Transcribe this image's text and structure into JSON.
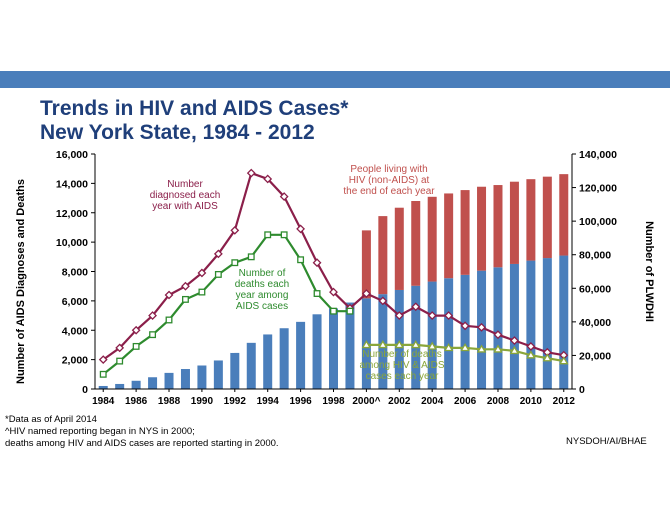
{
  "title_line1": "Trends in HIV and AIDS Cases*",
  "title_line2": "New York State, 1984 - 2012",
  "notes": [
    "*Data as of April 2014",
    "^HIV named reporting began in NYS in 2000;",
    " deaths among HIV and AIDS cases are reported starting in 2000."
  ],
  "source": "NYSDOH/AI/BHAE",
  "colors": {
    "band": "#4a7ebb",
    "title": "#1f3f7a",
    "aids_bar": "#4a7ebb",
    "hiv_bar": "#c0504d",
    "diagnosed_line": "#8b1f4a",
    "aids_deaths_line": "#2e8b2e",
    "all_deaths_line": "#8aa63a"
  },
  "chart_data": {
    "type": "bar",
    "x": [
      1984,
      1985,
      1986,
      1987,
      1988,
      1989,
      1990,
      1991,
      1992,
      1993,
      1994,
      1995,
      1996,
      1997,
      1998,
      1999,
      2000,
      2001,
      2002,
      2003,
      2004,
      2005,
      2006,
      2007,
      2008,
      2009,
      2010,
      2011,
      2012
    ],
    "x_tick_labels": [
      "1984",
      "1986",
      "1988",
      "1990",
      "1992",
      "1994",
      "1996",
      "1998",
      "2000^",
      "2002",
      "2004",
      "2006",
      "2008",
      "2010",
      "2012"
    ],
    "ylabel_left": "Number of AIDS Diagnoses and Deaths",
    "ylim_left": [
      0,
      16000
    ],
    "yticks_left": [
      "0",
      "2,000",
      "4,000",
      "6,000",
      "8,000",
      "10,000",
      "12,000",
      "14,000",
      "16,000"
    ],
    "ylabel_right": "Number of PLWDHI",
    "ylim_right": [
      0,
      140000
    ],
    "yticks_right": [
      "0",
      "20,000",
      "40,000",
      "60,000",
      "80,000",
      "100,000",
      "120,000",
      "140,000"
    ],
    "grid": false,
    "series": [
      {
        "axis": "right",
        "kind": "bar",
        "values": [
          1800,
          3000,
          4900,
          7000,
          9600,
          11900,
          14000,
          17000,
          21500,
          27500,
          32500,
          36200,
          40000,
          44500,
          48000,
          51500,
          54000,
          56500,
          59000,
          61500,
          64000,
          66000,
          68000,
          70500,
          72500,
          74500,
          76500,
          78000,
          79500
        ]
      },
      {
        "axis": "right",
        "kind": "stacked-bar",
        "values": [
          null,
          null,
          null,
          null,
          null,
          null,
          null,
          null,
          null,
          null,
          null,
          null,
          null,
          null,
          null,
          null,
          40500,
          46500,
          49000,
          50500,
          50500,
          50500,
          50500,
          50000,
          49000,
          49000,
          48500,
          48500,
          48500
        ]
      },
      {
        "axis": "left",
        "kind": "line",
        "marker": "diamond",
        "values": [
          2000,
          2800,
          4000,
          5000,
          6400,
          7000,
          7900,
          9200,
          10800,
          14700,
          14300,
          13100,
          10900,
          8600,
          6600,
          5500,
          6500,
          6000,
          5000,
          5600,
          5000,
          5000,
          4300,
          4200,
          3700,
          3300,
          2900,
          2500,
          2300
        ]
      },
      {
        "axis": "left",
        "kind": "line",
        "marker": "square",
        "values": [
          1000,
          1900,
          2900,
          3700,
          4700,
          6100,
          6600,
          7800,
          8600,
          9000,
          10500,
          10500,
          8800,
          6500,
          5300,
          5300,
          null,
          null,
          null,
          null,
          null,
          null,
          null,
          null,
          null,
          null,
          null,
          null,
          null
        ]
      },
      {
        "axis": "left",
        "kind": "line",
        "marker": "triangle",
        "values": [
          null,
          null,
          null,
          null,
          null,
          null,
          null,
          null,
          null,
          null,
          null,
          null,
          null,
          null,
          null,
          null,
          3000,
          3000,
          3000,
          3000,
          2900,
          2800,
          2800,
          2700,
          2700,
          2600,
          2300,
          2100,
          1900
        ]
      }
    ],
    "annotations": [
      [
        "Number",
        "diagnosed each",
        "year with AIDS"
      ],
      [
        "Number of",
        "deaths each",
        "year among",
        "AIDS cases"
      ],
      [
        "People living with",
        "AIDS at the end of",
        "each year"
      ],
      [
        "People living with",
        "HIV (non-AIDS) at",
        "the end of each year"
      ],
      [
        "Number of deaths",
        "among HIV & AIDS",
        "cases each year"
      ]
    ]
  }
}
